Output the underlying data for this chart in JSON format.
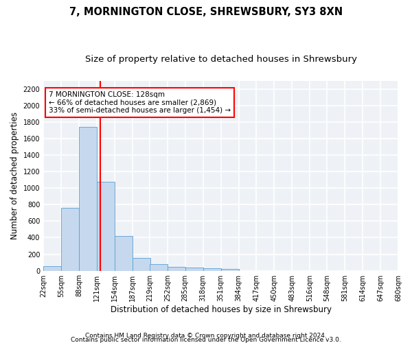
{
  "title": "7, MORNINGTON CLOSE, SHREWSBURY, SY3 8XN",
  "subtitle": "Size of property relative to detached houses in Shrewsbury",
  "xlabel": "Distribution of detached houses by size in Shrewsbury",
  "ylabel": "Number of detached properties",
  "footnote1": "Contains HM Land Registry data © Crown copyright and database right 2024.",
  "footnote2": "Contains public sector information licensed under the Open Government Licence v3.0.",
  "bar_values": [
    55,
    760,
    1740,
    1075,
    420,
    158,
    82,
    47,
    42,
    28,
    20,
    0,
    0,
    0,
    0,
    0,
    0,
    0,
    0,
    0
  ],
  "bin_edges": [
    22,
    55,
    88,
    121,
    154,
    187,
    219,
    252,
    285,
    318,
    351,
    384,
    417,
    450,
    483,
    516,
    548,
    581,
    614,
    647,
    680
  ],
  "x_tick_labels": [
    "22sqm",
    "55sqm",
    "88sqm",
    "121sqm",
    "154sqm",
    "187sqm",
    "219sqm",
    "252sqm",
    "285sqm",
    "318sqm",
    "351sqm",
    "384sqm",
    "417sqm",
    "450sqm",
    "483sqm",
    "516sqm",
    "548sqm",
    "581sqm",
    "614sqm",
    "647sqm",
    "680sqm"
  ],
  "bar_color": "#c5d8ed",
  "bar_edge_color": "#5a9fd4",
  "property_value": 128,
  "vline_color": "red",
  "annotation_text": "7 MORNINGTON CLOSE: 128sqm\n← 66% of detached houses are smaller (2,869)\n33% of semi-detached houses are larger (1,454) →",
  "annotation_box_color": "white",
  "annotation_box_edge": "red",
  "ylim": [
    0,
    2300
  ],
  "yticks": [
    0,
    200,
    400,
    600,
    800,
    1000,
    1200,
    1400,
    1600,
    1800,
    2000,
    2200
  ],
  "bg_color": "#eef2f7",
  "grid_color": "white",
  "title_fontsize": 10.5,
  "subtitle_fontsize": 9.5,
  "axis_label_fontsize": 8.5,
  "tick_fontsize": 7,
  "annotation_fontsize": 7.5,
  "footnote_fontsize": 6.5
}
